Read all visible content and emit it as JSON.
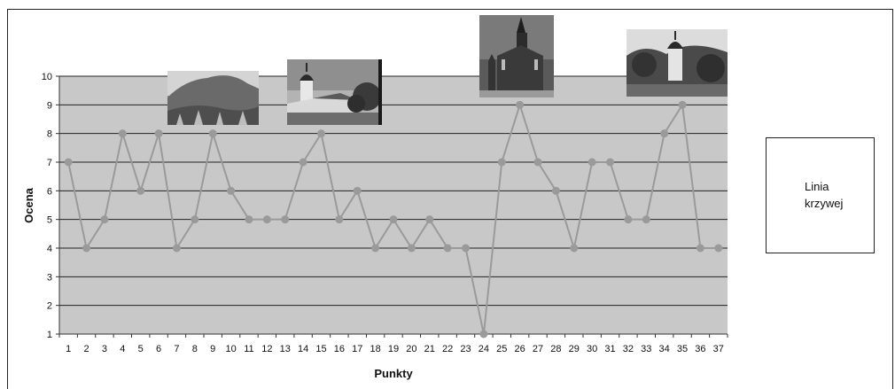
{
  "chart_data": {
    "type": "line",
    "title": "",
    "xlabel": "Punkty",
    "ylabel": "Ocena",
    "ylim": [
      1,
      10
    ],
    "grid": true,
    "legend_position": "right",
    "categories": [
      "1",
      "2",
      "3",
      "4",
      "5",
      "6",
      "7",
      "8",
      "9",
      "10",
      "11",
      "12",
      "13",
      "14",
      "15",
      "16",
      "17",
      "18",
      "19",
      "20",
      "21",
      "22",
      "23",
      "24",
      "25",
      "26",
      "27",
      "28",
      "29",
      "30",
      "31",
      "32",
      "33",
      "34",
      "35",
      "36",
      "37"
    ],
    "y_ticks": [
      "1",
      "2",
      "3",
      "4",
      "5",
      "6",
      "7",
      "8",
      "9",
      "10"
    ],
    "series": [
      {
        "name": "Linia krzywej",
        "color": "#9a9a9a",
        "values": [
          7,
          4,
          5,
          8,
          6,
          8,
          4,
          5,
          8,
          6,
          5,
          5,
          5,
          7,
          8,
          5,
          6,
          4,
          5,
          4,
          5,
          4,
          4,
          1,
          7,
          9,
          7,
          6,
          4,
          7,
          7,
          5,
          5,
          8,
          9,
          4,
          4
        ]
      }
    ]
  },
  "photos": [
    {
      "name": "mountain-photo",
      "at_point": 7
    },
    {
      "name": "village-church-photo",
      "at_point": 14
    },
    {
      "name": "gothic-church-photo",
      "at_point": 26
    },
    {
      "name": "hill-chapel-photo",
      "at_point": 35
    }
  ]
}
